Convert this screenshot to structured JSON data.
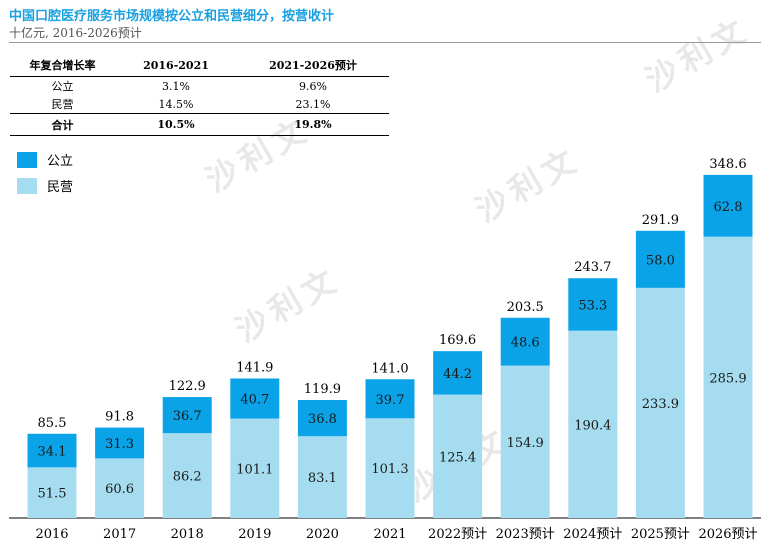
{
  "title": "中国口腔医疗服务市场规模按公立和民营细分，按营收计",
  "subtitle": "十亿元, 2016-2026预计",
  "cagr_table": {
    "headers": [
      "年复合增长率",
      "2016-2021",
      "2021-2026预计"
    ],
    "rows": [
      {
        "label": "公立",
        "v1": "3.1%",
        "v2": "9.6%"
      },
      {
        "label": "民营",
        "v1": "14.5%",
        "v2": "23.1%"
      },
      {
        "label": "合计",
        "v1": "10.5%",
        "v2": "19.8%"
      }
    ]
  },
  "watermark": "沙利文",
  "chart_data": {
    "type": "bar",
    "stacked": true,
    "categories": [
      "2016",
      "2017",
      "2018",
      "2019",
      "2020",
      "2021",
      "2022预计",
      "2023预计",
      "2024预计",
      "2025预计",
      "2026预计"
    ],
    "series": [
      {
        "name": "民营",
        "color": "#a6dcf0",
        "values": [
          51.5,
          60.6,
          86.2,
          101.1,
          83.1,
          101.3,
          125.4,
          154.9,
          190.4,
          233.9,
          285.9
        ]
      },
      {
        "name": "公立",
        "color": "#0aa3e8",
        "values": [
          34.1,
          31.3,
          36.7,
          40.7,
          36.8,
          39.7,
          44.2,
          48.6,
          53.3,
          58.0,
          62.8
        ]
      }
    ],
    "totals": [
      85.5,
      91.8,
      122.9,
      141.9,
      119.9,
      141.0,
      169.6,
      203.5,
      243.7,
      291.9,
      348.6
    ],
    "legend": [
      "公立",
      "民营"
    ],
    "legend_position": "top-left",
    "ylim": [
      0,
      360
    ],
    "grid": false
  }
}
